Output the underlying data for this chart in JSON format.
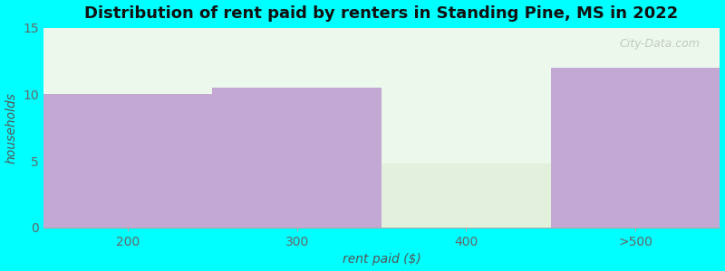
{
  "categories": [
    "200",
    "300",
    "400",
    ">500"
  ],
  "values": [
    10.0,
    10.5,
    4.8,
    12.0
  ],
  "bar_colors": [
    "#C4A8D4",
    "#C4A8D4",
    "#E2F0DC",
    "#C4A8D4"
  ],
  "title": "Distribution of rent paid by renters in Standing Pine, MS in 2022",
  "xlabel": "rent paid ($)",
  "ylabel": "households",
  "ylim": [
    0,
    15
  ],
  "yticks": [
    0,
    5,
    10,
    15
  ],
  "background_color": "#00FFFF",
  "plot_bg_top": "#EDFAED",
  "plot_bg_bottom": "#F5FFF5",
  "title_fontsize": 13,
  "axis_label_fontsize": 10,
  "tick_fontsize": 10,
  "bar_width": 1.0,
  "watermark": "City-Data.com"
}
